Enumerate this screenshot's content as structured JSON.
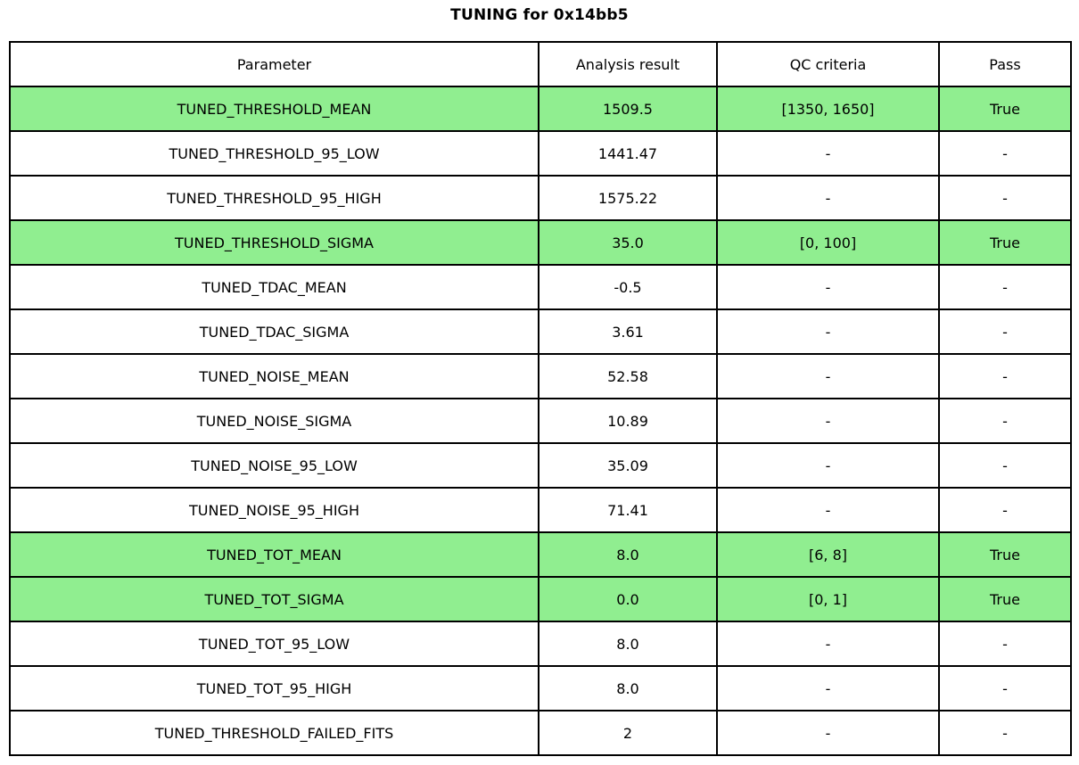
{
  "title": "TUNING for 0x14bb5",
  "colors": {
    "highlight": "#90EE90",
    "border": "#000000",
    "background": "#ffffff"
  },
  "chart_data": {
    "type": "table",
    "title": "TUNING for 0x14bb5",
    "columns": [
      "Parameter",
      "Analysis result",
      "QC criteria",
      "Pass"
    ],
    "rows": [
      {
        "param": "TUNED_THRESHOLD_MEAN",
        "result": "1509.5",
        "qc": "[1350, 1650]",
        "pass": "True",
        "highlight": true
      },
      {
        "param": "TUNED_THRESHOLD_95_LOW",
        "result": "1441.47",
        "qc": "-",
        "pass": "-",
        "highlight": false
      },
      {
        "param": "TUNED_THRESHOLD_95_HIGH",
        "result": "1575.22",
        "qc": "-",
        "pass": "-",
        "highlight": false
      },
      {
        "param": "TUNED_THRESHOLD_SIGMA",
        "result": "35.0",
        "qc": "[0, 100]",
        "pass": "True",
        "highlight": true
      },
      {
        "param": "TUNED_TDAC_MEAN",
        "result": "-0.5",
        "qc": "-",
        "pass": "-",
        "highlight": false
      },
      {
        "param": "TUNED_TDAC_SIGMA",
        "result": "3.61",
        "qc": "-",
        "pass": "-",
        "highlight": false
      },
      {
        "param": "TUNED_NOISE_MEAN",
        "result": "52.58",
        "qc": "-",
        "pass": "-",
        "highlight": false
      },
      {
        "param": "TUNED_NOISE_SIGMA",
        "result": "10.89",
        "qc": "-",
        "pass": "-",
        "highlight": false
      },
      {
        "param": "TUNED_NOISE_95_LOW",
        "result": "35.09",
        "qc": "-",
        "pass": "-",
        "highlight": false
      },
      {
        "param": "TUNED_NOISE_95_HIGH",
        "result": "71.41",
        "qc": "-",
        "pass": "-",
        "highlight": false
      },
      {
        "param": "TUNED_TOT_MEAN",
        "result": "8.0",
        "qc": "[6, 8]",
        "pass": "True",
        "highlight": true
      },
      {
        "param": "TUNED_TOT_SIGMA",
        "result": "0.0",
        "qc": "[0, 1]",
        "pass": "True",
        "highlight": true
      },
      {
        "param": "TUNED_TOT_95_LOW",
        "result": "8.0",
        "qc": "-",
        "pass": "-",
        "highlight": false
      },
      {
        "param": "TUNED_TOT_95_HIGH",
        "result": "8.0",
        "qc": "-",
        "pass": "-",
        "highlight": false
      },
      {
        "param": "TUNED_THRESHOLD_FAILED_FITS",
        "result": "2",
        "qc": "-",
        "pass": "-",
        "highlight": false
      }
    ]
  }
}
